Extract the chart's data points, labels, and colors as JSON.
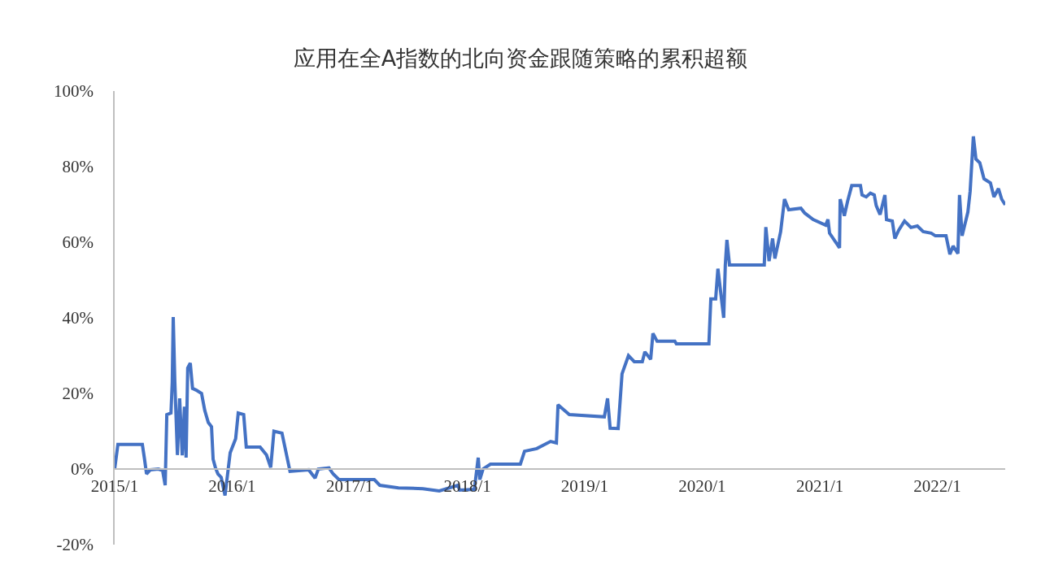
{
  "chart_data": {
    "type": "line",
    "title": "应用在全A指数的北向资金跟随策略的累积超额",
    "x": [
      "2015-01-01",
      "2015-01-11",
      "2015-03-28",
      "2015-04-04",
      "2015-04-10",
      "2015-04-22",
      "2015-05-17",
      "2015-05-30",
      "2015-06-07",
      "2015-06-12",
      "2015-06-25",
      "2015-06-29",
      "2015-07-02",
      "2015-07-07",
      "2015-07-15",
      "2015-07-22",
      "2015-07-30",
      "2015-08-06",
      "2015-08-11",
      "2015-08-16",
      "2015-08-24",
      "2015-08-31",
      "2015-09-11",
      "2015-09-28",
      "2015-10-08",
      "2015-10-19",
      "2015-10-29",
      "2015-11-03",
      "2015-11-10",
      "2015-11-18",
      "2015-11-28",
      "2015-12-10",
      "2015-12-26",
      "2016-01-12",
      "2016-01-20",
      "2016-02-06",
      "2016-02-14",
      "2016-03-28",
      "2016-04-17",
      "2016-04-30",
      "2016-05-10",
      "2016-06-04",
      "2016-06-29",
      "2016-08-26",
      "2016-09-15",
      "2016-09-25",
      "2016-10-28",
      "2016-11-10",
      "2016-11-28",
      "2017-01-01",
      "2017-03-18",
      "2017-04-04",
      "2017-06-01",
      "2017-08-16",
      "2017-10-06",
      "2017-12-03",
      "2017-12-08",
      "2018-01-23",
      "2018-02-04",
      "2018-02-09",
      "2018-02-19",
      "2018-03-14",
      "2018-06-15",
      "2018-06-28",
      "2018-08-05",
      "2018-09-17",
      "2018-10-05",
      "2018-10-10",
      "2018-11-14",
      "2019-03-03",
      "2019-03-13",
      "2019-03-21",
      "2019-04-15",
      "2019-04-27",
      "2019-05-17",
      "2019-06-04",
      "2019-06-29",
      "2019-07-07",
      "2019-07-25",
      "2019-08-01",
      "2019-08-14",
      "2019-10-08",
      "2019-10-13",
      "2020-01-22",
      "2020-01-28",
      "2020-02-12",
      "2020-02-19",
      "2020-03-08",
      "2020-03-13",
      "2020-03-18",
      "2020-03-26",
      "2020-07-12",
      "2020-07-17",
      "2020-07-27",
      "2020-08-07",
      "2020-08-14",
      "2020-08-24",
      "2020-09-01",
      "2020-09-13",
      "2020-09-26",
      "2020-11-03",
      "2020-11-15",
      "2020-12-11",
      "2021-01-19",
      "2021-01-26",
      "2021-01-31",
      "2021-03-03",
      "2021-03-05",
      "2021-03-18",
      "2021-03-28",
      "2021-04-10",
      "2021-05-07",
      "2021-05-12",
      "2021-05-25",
      "2021-06-07",
      "2021-06-19",
      "2021-06-25",
      "2021-07-07",
      "2021-07-22",
      "2021-07-27",
      "2021-08-14",
      "2021-08-22",
      "2021-09-03",
      "2021-09-21",
      "2021-10-11",
      "2021-10-31",
      "2021-11-18",
      "2021-12-13",
      "2021-12-26",
      "2022-01-28",
      "2022-02-09",
      "2022-02-19",
      "2022-03-06",
      "2022-03-11",
      "2022-03-19",
      "2022-04-06",
      "2022-04-13",
      "2022-04-23",
      "2022-05-01",
      "2022-05-13",
      "2022-05-26",
      "2022-06-15",
      "2022-06-26",
      "2022-07-10",
      "2022-07-20",
      "2022-07-31"
    ],
    "series": [
      {
        "color": "#4472c4",
        "values": [
          0,
          6.5,
          6.5,
          2.5,
          -1.3,
          -0.2,
          0,
          -0.4,
          -4.3,
          14.4,
          14.8,
          23,
          40.2,
          23,
          3.7,
          18.7,
          3.6,
          16.5,
          3,
          26.7,
          28,
          21.3,
          20.9,
          20,
          15.5,
          12.3,
          11.2,
          2.6,
          0.4,
          -1.3,
          -2.2,
          -7,
          4.3,
          8,
          14.8,
          14.4,
          5.8,
          5.8,
          3.7,
          0.4,
          10,
          9.5,
          -0.6,
          -0.2,
          -2.4,
          0,
          0.3,
          -1.3,
          -2.8,
          -2.8,
          -2.8,
          -4.3,
          -5,
          -5.2,
          -5.8,
          -4.3,
          -5.6,
          -5.4,
          3,
          -2.8,
          0,
          1.3,
          1.3,
          4.7,
          5.4,
          7.3,
          6.9,
          17,
          14.4,
          13.8,
          18.7,
          10.8,
          10.7,
          25.2,
          30,
          28.4,
          28.4,
          31,
          29,
          35.9,
          33.8,
          33.8,
          33.1,
          33.1,
          45,
          45,
          53,
          40,
          54,
          60.6,
          54,
          54,
          64,
          55,
          61,
          55.7,
          59.6,
          62.8,
          71.4,
          68.6,
          69,
          67.7,
          66,
          64.5,
          66,
          62.4,
          58.5,
          71.4,
          67,
          70.8,
          75,
          75,
          72.5,
          72,
          73,
          72.5,
          69.7,
          67.3,
          72.5,
          66,
          65.6,
          61,
          63.2,
          65.6,
          63.9,
          64.3,
          62.8,
          62.4,
          61.7,
          61.7,
          56.8,
          59,
          57,
          72.5,
          61.7,
          68,
          73.5,
          88,
          82,
          81,
          76.8,
          75.7,
          72,
          74.2,
          71.4,
          69.9
        ]
      }
    ],
    "xlim": [
      "2015-01-01",
      "2022-07-31"
    ],
    "xticks": [
      {
        "value": "2015-01-01",
        "label": "2015/1"
      },
      {
        "value": "2016-01-01",
        "label": "2016/1"
      },
      {
        "value": "2017-01-01",
        "label": "2017/1"
      },
      {
        "value": "2018-01-01",
        "label": "2018/1"
      },
      {
        "value": "2019-01-01",
        "label": "2019/1"
      },
      {
        "value": "2020-01-01",
        "label": "2020/1"
      },
      {
        "value": "2021-01-01",
        "label": "2021/1"
      },
      {
        "value": "2022-01-01",
        "label": "2022/1"
      }
    ],
    "ylim": [
      -20,
      100
    ],
    "yticks": [
      {
        "value": -20,
        "label": "-20%"
      },
      {
        "value": 0,
        "label": "0%"
      },
      {
        "value": 20,
        "label": "20%"
      },
      {
        "value": 40,
        "label": "40%"
      },
      {
        "value": 60,
        "label": "60%"
      },
      {
        "value": 80,
        "label": "80%"
      },
      {
        "value": 100,
        "label": "100%"
      }
    ],
    "grid": false,
    "marker": "none",
    "line_style": "solid"
  }
}
